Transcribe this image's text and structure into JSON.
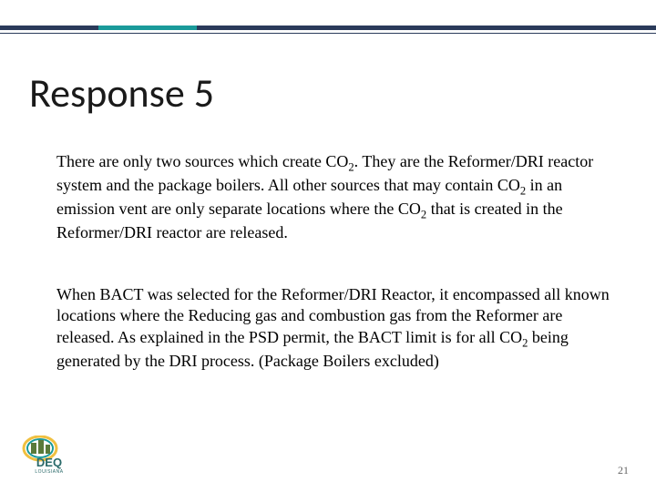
{
  "slide": {
    "title": "Response 5",
    "title_fontsize": 44,
    "title_color": "#1a1a1a",
    "paragraphs": [
      "There are only two sources which create CO2. They are the Reformer/DRI reactor system and the package boilers. All other sources that may contain CO2 in an emission vent are only separate locations where the CO2 that is created in the Reformer/DRI reactor are released.",
      "When BACT was selected for the Reformer/DRI Reactor, it encompassed all known locations where the Reducing gas and combustion gas from the Reformer are released. As explained in the PSD permit, the BACT limit is for all CO2 being generated by the DRI process. (Package Boilers excluded)"
    ],
    "body_fontsize": 18,
    "body_color": "#000000",
    "page_number": "21",
    "page_number_fontsize": 12,
    "page_number_color": "#666666",
    "background_color": "#ffffff",
    "accent_line_colors": [
      "#2a3a5a",
      "#1a9a9a"
    ],
    "logo": {
      "text_top": "DEQ",
      "text_bottom": "LOUISIANA",
      "ring_outer": "#f0c040",
      "ring_inner": "#1a9a9a",
      "building_color": "#5a7a3a",
      "text_color": "#2a6a6a"
    }
  }
}
